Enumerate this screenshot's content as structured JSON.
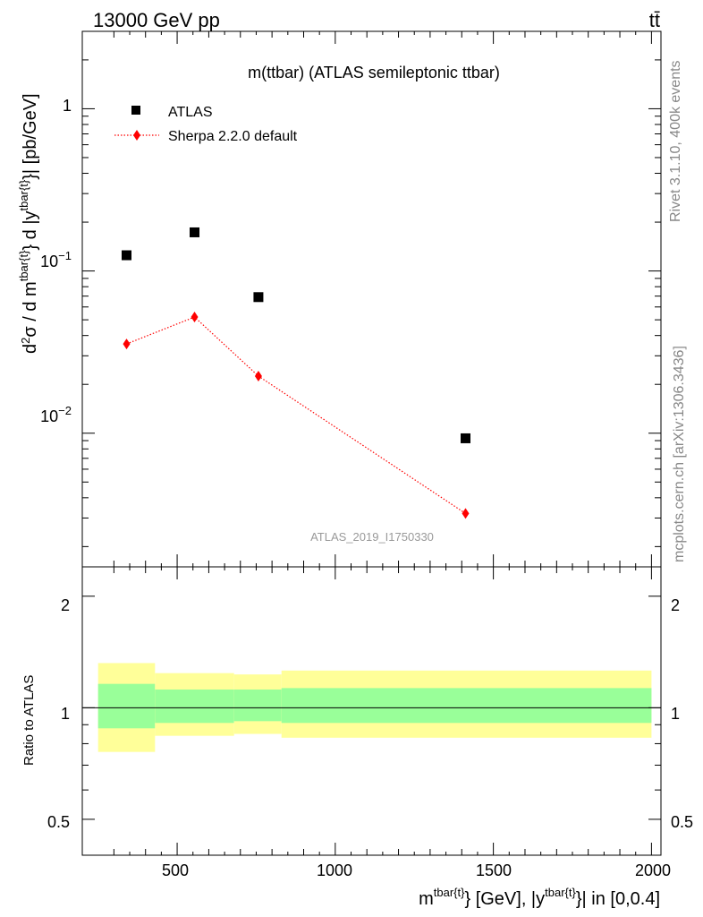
{
  "header": {
    "energy": "13000 GeV pp",
    "process": "tt̄"
  },
  "side_labels": {
    "rivet": "Rivet 3.1.10,  400k events",
    "mcplots": "mcplots.cern.ch [arXiv:1306.3436]"
  },
  "chart_data": [
    {
      "type": "scatter",
      "title": "m(ttbar) (ATLAS semileptonic ttbar)",
      "watermark": "ATLAS_2019_I1750330",
      "ylabel": "d²σ / d m^{tbar{t}} d |y^{tbar{t}}| [pb/GeV]",
      "xlim": [
        200,
        2030
      ],
      "ylim": [
        0.0015,
        3.0
      ],
      "yscale": "log",
      "ytick_labels": [
        "1",
        "10⁻¹",
        "10⁻²"
      ],
      "legend_position": "top-left",
      "series": [
        {
          "name": "ATLAS",
          "color": "#000000",
          "marker": "square",
          "x": [
            340,
            555,
            757,
            1412
          ],
          "y": [
            0.125,
            0.173,
            0.069,
            0.0093
          ]
        },
        {
          "name": "Sherpa 2.2.0 default",
          "color": "#ff0000",
          "marker": "diamond",
          "line": "dotted",
          "x": [
            340,
            555,
            757,
            1412
          ],
          "y": [
            0.0355,
            0.052,
            0.0225,
            0.0032
          ]
        }
      ]
    },
    {
      "type": "area",
      "ylabel": "Ratio to ATLAS",
      "xlabel": "m^{tbar{t}} [GeV], |y^{tbar{t}}| in [0,0.4]",
      "xlim": [
        200,
        2030
      ],
      "ylim": [
        0.4,
        2.4
      ],
      "yscale": "log",
      "xtick_labels": [
        "500",
        "1000",
        "1500",
        "2000"
      ],
      "ytick_labels": [
        "0.5",
        "1",
        "2"
      ],
      "reference_line": 1.0,
      "bands": [
        {
          "x_low": 250,
          "x_high": 430,
          "inner": [
            0.88,
            1.16
          ],
          "outer": [
            0.76,
            1.32
          ]
        },
        {
          "x_low": 430,
          "x_high": 680,
          "inner": [
            0.91,
            1.12
          ],
          "outer": [
            0.84,
            1.24
          ]
        },
        {
          "x_low": 680,
          "x_high": 830,
          "inner": [
            0.92,
            1.12
          ],
          "outer": [
            0.85,
            1.23
          ]
        },
        {
          "x_low": 830,
          "x_high": 2000,
          "inner": [
            0.91,
            1.13
          ],
          "outer": [
            0.83,
            1.26
          ]
        }
      ],
      "colors": {
        "inner": "#99ff99",
        "outer": "#ffff99"
      }
    }
  ]
}
